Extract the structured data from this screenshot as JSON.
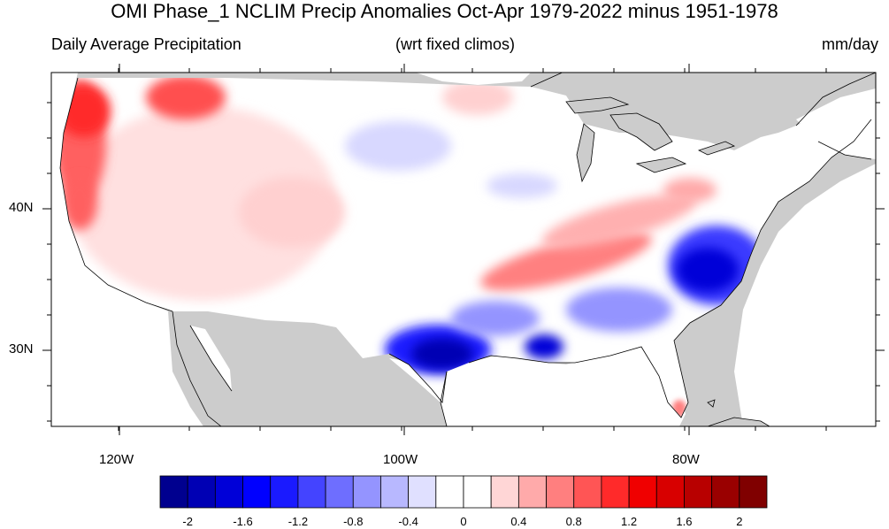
{
  "title": "OMI Phase_1 NCLIM Precip Anomalies Oct-Apr 1979-2022 minus 1951-1978",
  "subtitle_left": "Daily Average Precipitation",
  "subtitle_center": "(wrt fixed climos)",
  "subtitle_right": "mm/day",
  "lat_labels": [
    "40N",
    "30N"
  ],
  "lon_labels": [
    "120W",
    "100W",
    "80W"
  ],
  "colorbar": {
    "labels": [
      "-2",
      "-1.6",
      "-1.2",
      "-0.8",
      "-0.4",
      "0",
      "0.4",
      "0.8",
      "1.2",
      "1.6",
      "2"
    ],
    "colors": [
      "#00008f",
      "#0000b4",
      "#0000d8",
      "#0000ff",
      "#1a1aff",
      "#4444ff",
      "#6e6eff",
      "#9494ff",
      "#b8b8ff",
      "#e0e0ff",
      "#ffffff",
      "#ffffff",
      "#ffd6d6",
      "#ffaaaa",
      "#ff7f7f",
      "#ff5555",
      "#ff2a2a",
      "#f00000",
      "#d80000",
      "#b80000",
      "#9a0000",
      "#800000"
    ]
  },
  "colors": {
    "land_outside": "#cccccc",
    "background": "#ffffff",
    "outline": "#000000"
  }
}
